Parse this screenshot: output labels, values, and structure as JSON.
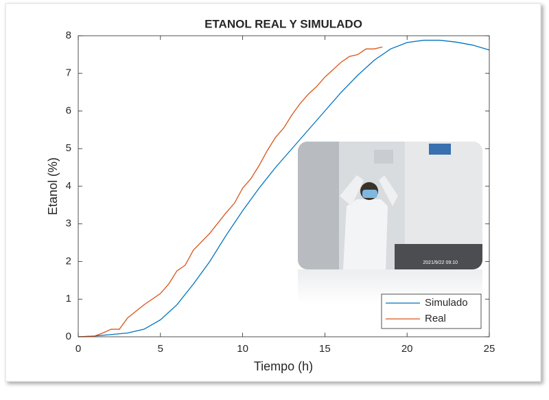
{
  "chart_data": {
    "type": "line",
    "title": "ETANOL REAL Y SIMULADO",
    "x_label": "Tiempo (h)",
    "y_label": "Etanol (%)",
    "xlim": [
      0,
      25
    ],
    "xticks": [
      0,
      5,
      10,
      15,
      20,
      25
    ],
    "ylim": [
      0,
      8
    ],
    "yticks": [
      0,
      1,
      2,
      3,
      4,
      5,
      6,
      7,
      8
    ],
    "grid": false,
    "legend": "lower right",
    "series": [
      {
        "name": "Simulado",
        "color": "#0072bd",
        "x": [
          0,
          1,
          2,
          3,
          4,
          5,
          6,
          7,
          8,
          9,
          10,
          11,
          12,
          13,
          14,
          15,
          16,
          17,
          18,
          19,
          20,
          21,
          22,
          23,
          24,
          25
        ],
        "values": [
          0,
          0.02,
          0.06,
          0.1,
          0.2,
          0.45,
          0.85,
          1.4,
          2.0,
          2.7,
          3.35,
          3.95,
          4.5,
          5.0,
          5.5,
          6.0,
          6.5,
          6.95,
          7.35,
          7.65,
          7.82,
          7.88,
          7.88,
          7.83,
          7.75,
          7.62
        ]
      },
      {
        "name": "Real",
        "color": "#d95319",
        "x": [
          0,
          1,
          1.5,
          2,
          2.5,
          3,
          4,
          5,
          5.5,
          6,
          6.5,
          7,
          8,
          9,
          9.5,
          10,
          10.5,
          11,
          11.5,
          12,
          12.5,
          13,
          13.5,
          14,
          14.5,
          15,
          15.5,
          16,
          16.5,
          17,
          17.5,
          18,
          18.5
        ],
        "values": [
          0,
          0.02,
          0.1,
          0.2,
          0.2,
          0.5,
          0.85,
          1.15,
          1.4,
          1.75,
          1.9,
          2.3,
          2.75,
          3.3,
          3.55,
          3.95,
          4.2,
          4.55,
          4.95,
          5.3,
          5.55,
          5.9,
          6.2,
          6.45,
          6.65,
          6.9,
          7.1,
          7.3,
          7.45,
          7.5,
          7.65,
          7.65,
          7.7
        ]
      }
    ]
  },
  "photo_timestamp": "2021/9/22 09:10"
}
